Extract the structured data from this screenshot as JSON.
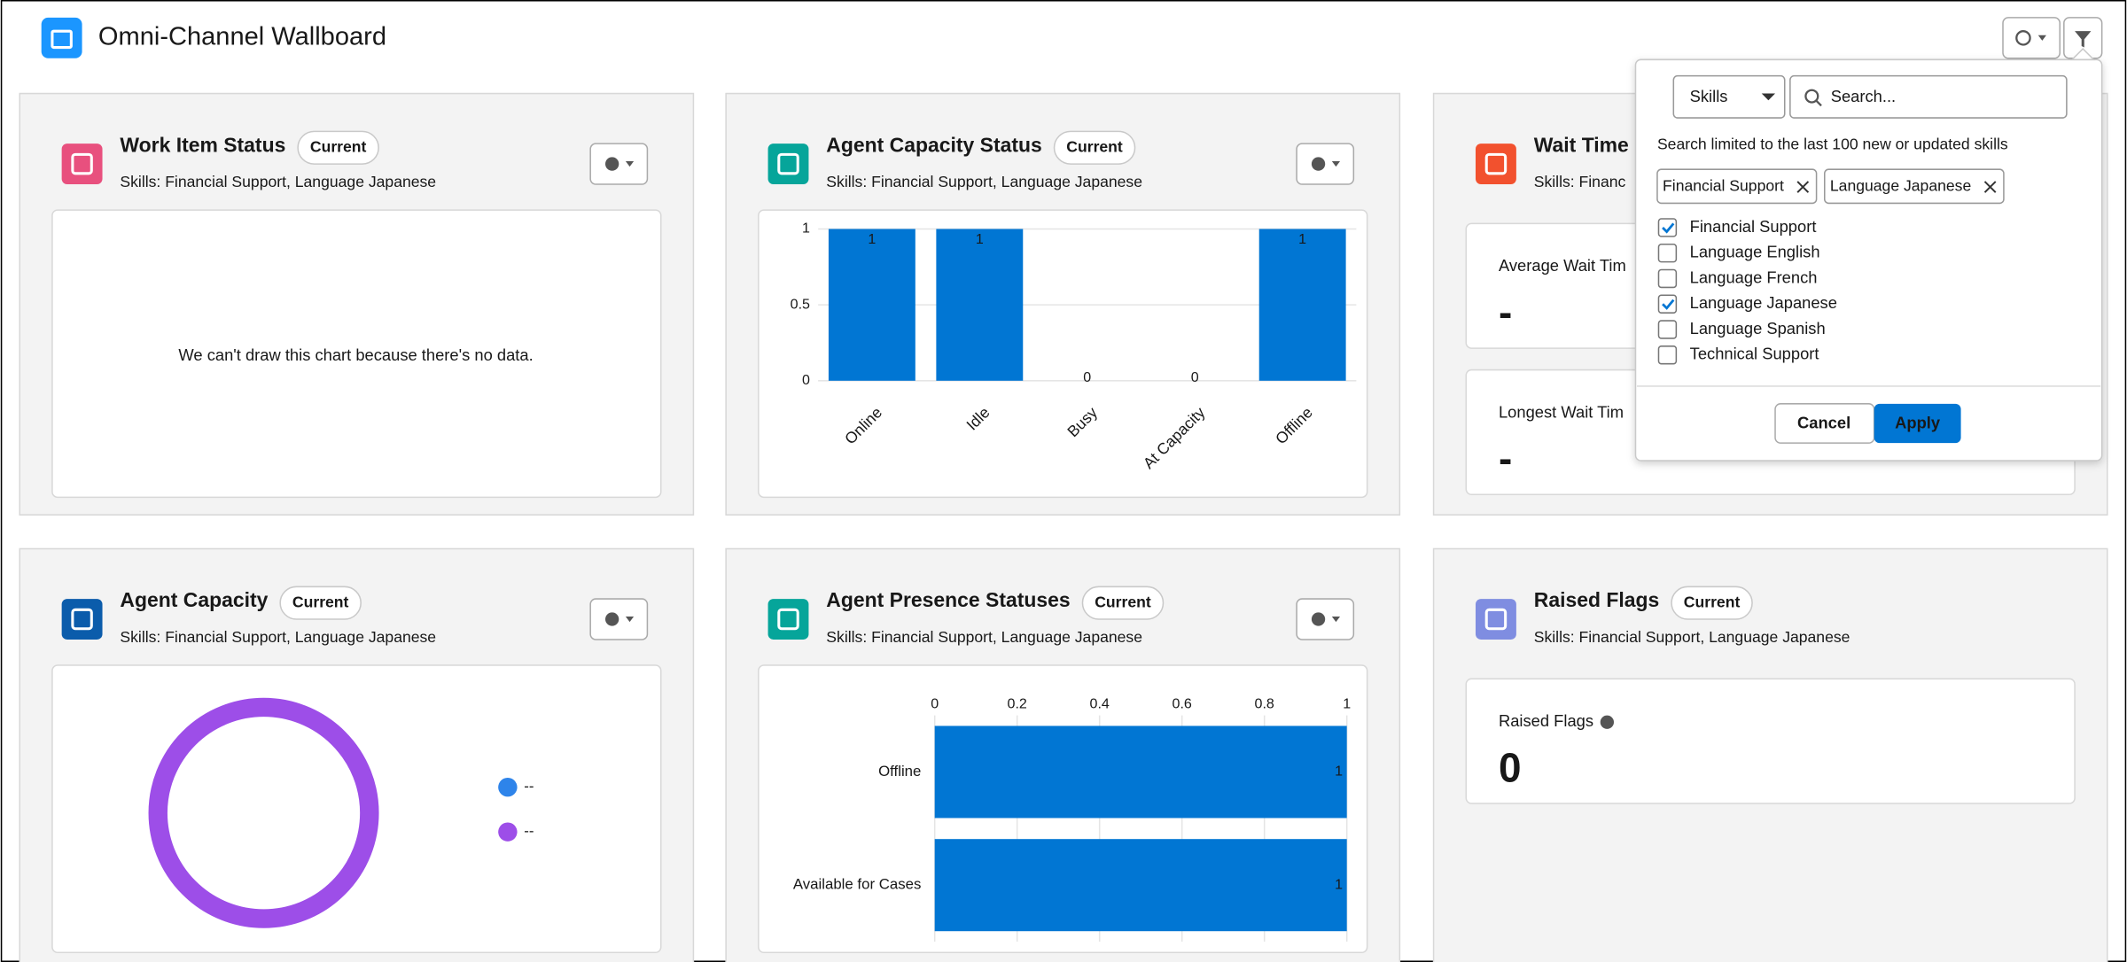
{
  "header": {
    "title": "Omni-Channel Wallboard"
  },
  "panels": [
    {
      "title": "Work Item Status",
      "badge": "Current",
      "skills": "Skills: Financial Support, Language Japanese",
      "message": "We can't draw this chart because there's no data."
    },
    {
      "title": "Agent Capacity Status",
      "badge": "Current",
      "skills": "Skills: Financial Support, Language Japanese",
      "chart": {
        "type": "bar",
        "categories": [
          "Online",
          "Idle",
          "Busy",
          "At Capacity",
          "Offline"
        ],
        "values": [
          1,
          1,
          0,
          0,
          1
        ],
        "color": "#0176d3",
        "ylim": [
          0,
          1
        ],
        "yticks": [
          0,
          0.5,
          1
        ],
        "grid": true
      }
    },
    {
      "title": "Wait Time",
      "skills": "Skills: Financ",
      "metrics": [
        {
          "label": "Average Wait Tim",
          "value": "-"
        },
        {
          "label": "Longest Wait Tim",
          "value": "-"
        }
      ]
    },
    {
      "title": "Agent Capacity",
      "badge": "Current",
      "skills": "Skills: Financial Support, Language Japanese",
      "chart": {
        "type": "donut",
        "series": [
          {
            "name": "--",
            "color": "#2e84ea"
          },
          {
            "name": "--",
            "color": "#9d4ee8"
          }
        ]
      }
    },
    {
      "title": "Agent Presence Statuses",
      "badge": "Current",
      "skills": "Skills: Financial Support, Language Japanese",
      "chart": {
        "type": "hbar",
        "categories": [
          "Offline",
          "Available for Cases"
        ],
        "values": [
          1,
          1
        ],
        "color": "#0176d3",
        "xlim": [
          0,
          1
        ],
        "xticks": [
          0,
          0.2,
          0.4,
          0.6,
          0.8,
          1
        ],
        "grid": true
      }
    },
    {
      "title": "Raised Flags",
      "badge": "Current",
      "skills": "Skills: Financial Support, Language Japanese",
      "metrics": [
        {
          "label": "Raised Flags",
          "value": 0
        }
      ]
    }
  ],
  "filter": {
    "dropdown": "Skills",
    "search_placeholder": "Search...",
    "hint": "Search limited to the last 100 new or updated skills",
    "pills": [
      "Financial Support",
      "Language Japanese"
    ],
    "options": [
      {
        "label": "Financial Support",
        "checked": true
      },
      {
        "label": "Language English",
        "checked": false
      },
      {
        "label": "Language French",
        "checked": false
      },
      {
        "label": "Language Japanese",
        "checked": true
      },
      {
        "label": "Language Spanish",
        "checked": false
      },
      {
        "label": "Technical Support",
        "checked": false
      }
    ],
    "cancel": "Cancel",
    "apply": "Apply"
  }
}
